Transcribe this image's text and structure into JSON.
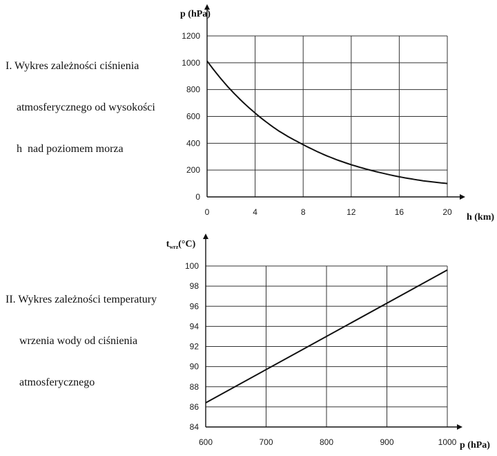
{
  "charts": [
    {
      "description_lines": [
        "I. Wykres zależności ciśnienia",
        "    atmosferycznego od wysokości",
        "    h  nad poziomem morza"
      ]
    },
    {
      "description_lines": [
        "II. Wykres zależności temperatury",
        "     wrzenia wody od ciśnienia",
        "     atmosferycznego"
      ]
    }
  ],
  "chart_data": [
    {
      "type": "line",
      "title": "I. Wykres zależności ciśnienia atmosferycznego od wysokości h nad poziomem morza",
      "xlabel": "h (km)",
      "ylabel": "p (hPa)",
      "ylabel_main": "p (hPa)",
      "ylabel_sub": "",
      "xlim": [
        0,
        20
      ],
      "ylim": [
        0,
        1200
      ],
      "xticks": [
        0,
        4,
        8,
        12,
        16,
        20
      ],
      "yticks": [
        0,
        200,
        400,
        600,
        800,
        1000,
        1200
      ],
      "grid": true,
      "series": [
        {
          "x": [
            0,
            2,
            4,
            6,
            8,
            10,
            12,
            14,
            16,
            18,
            20
          ],
          "y": [
            1013,
            795,
            625,
            490,
            390,
            305,
            240,
            190,
            150,
            120,
            100
          ]
        }
      ]
    },
    {
      "type": "line",
      "title": "II. Wykres zależności temperatury wrzenia wody od ciśnienia atmosferycznego",
      "xlabel": "p (hPa)",
      "ylabel": "twrz (°C)",
      "ylabel_main": "t",
      "ylabel_sub": "wrz",
      "ylabel_tail": "(°C)",
      "xlim": [
        600,
        1000
      ],
      "ylim": [
        84,
        100
      ],
      "xticks": [
        600,
        700,
        800,
        900,
        1000
      ],
      "yticks": [
        84,
        86,
        88,
        90,
        92,
        94,
        96,
        98,
        100
      ],
      "grid": true,
      "series": [
        {
          "x": [
            600,
            1000
          ],
          "y": [
            86.4,
            99.6
          ]
        }
      ]
    }
  ]
}
